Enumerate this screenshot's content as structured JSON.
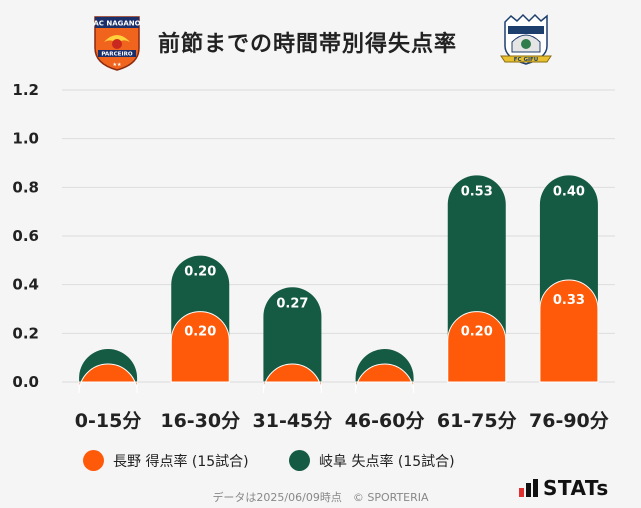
{
  "title": "前節までの時間帯別得失点率",
  "logos": {
    "left_top": "AC NAGANO",
    "left_bottom": "PARCEIRO",
    "right": "FC GIFU"
  },
  "chart_data": {
    "type": "bar",
    "categories": [
      "0-15分",
      "16-30分",
      "31-45分",
      "46-60分",
      "61-75分",
      "76-90分"
    ],
    "series": [
      {
        "name": "長野 得点率 (15試合)",
        "values": [
          0.0,
          0.2,
          0.0,
          0.0,
          0.2,
          0.33
        ],
        "labels": [
          "",
          "0.20",
          "",
          "",
          "0.20",
          "0.33"
        ],
        "color": "#ff5a0a"
      },
      {
        "name": "岐阜 失点率 (15試合)",
        "values": [
          0.0,
          0.2,
          0.27,
          0.0,
          0.53,
          0.4
        ],
        "labels": [
          "",
          "0.20",
          "0.27",
          "",
          "0.53",
          "0.40"
        ],
        "color": "#155a43"
      }
    ],
    "stacked": true,
    "ylim": [
      0,
      1.2
    ],
    "yticks": [
      "0.0",
      "0.2",
      "0.4",
      "0.6",
      "0.8",
      "1.0",
      "1.2"
    ],
    "grid": true,
    "legend_position": "bottom"
  },
  "footer": "データは2025/06/09時点　© SPORTERIA",
  "brand": "STATs",
  "colors": {
    "orange": "#ff5a0a",
    "green": "#155a43",
    "background": "#f5f5f5"
  }
}
